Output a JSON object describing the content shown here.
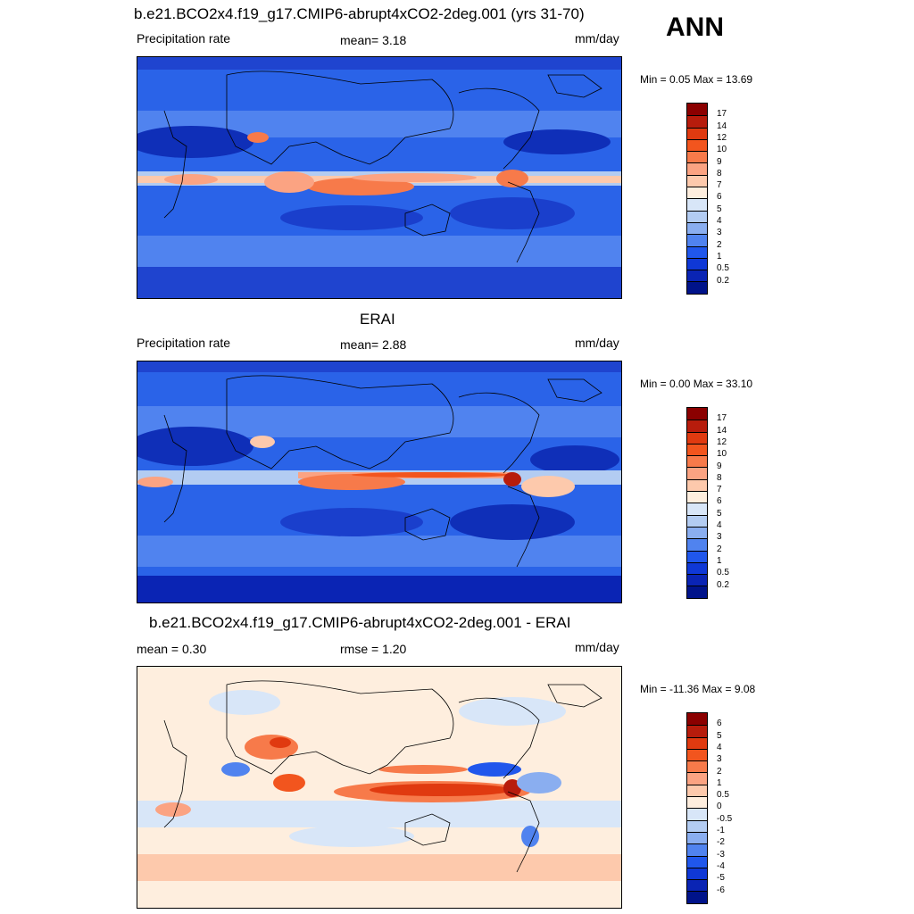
{
  "season": "ANN",
  "panels": [
    {
      "title": "b.e21.BCO2x4.f19_g17.CMIP6-abrupt4xCO2-2deg.001 (yrs 31-70)",
      "left_label": "Precipitation rate",
      "center_label": "mean=   3.18",
      "units": "mm/day",
      "minmax": "Min =   0.05 Max =  13.69"
    },
    {
      "title": "ERAI",
      "left_label": "Precipitation rate",
      "center_label": "mean=   2.88",
      "units": "mm/day",
      "minmax": "Min =   0.00 Max =  33.10"
    },
    {
      "title": "b.e21.BCO2x4.f19_g17.CMIP6-abrupt4xCO2-2deg.001 - ERAI",
      "left_label": "mean =   0.30",
      "center_label": "rmse =   1.20",
      "units": "mm/day",
      "minmax": "Min = -11.36 Max =   9.08"
    }
  ],
  "colorbars": {
    "precip": {
      "levels": [
        "17",
        "14",
        "12",
        "10",
        "9",
        "8",
        "7",
        "6",
        "5",
        "4",
        "3",
        "2",
        "1",
        "0.5",
        "0.2"
      ],
      "colors": [
        "#8b0000",
        "#b71c0c",
        "#e03a10",
        "#f2551e",
        "#f77a4a",
        "#fba382",
        "#fdc9ac",
        "#feeede",
        "#d8e6f8",
        "#b3ccf2",
        "#8aaef0",
        "#5083ef",
        "#2057ec",
        "#0f38d6",
        "#0a24b4",
        "#00138a"
      ]
    },
    "diff": {
      "levels": [
        "6",
        "5",
        "4",
        "3",
        "2",
        "1",
        "0.5",
        "0",
        "-0.5",
        "-1",
        "-2",
        "-3",
        "-4",
        "-5",
        "-6"
      ],
      "colors": [
        "#8b0000",
        "#b71c0c",
        "#e03a10",
        "#f2551e",
        "#f77a4a",
        "#fba382",
        "#fdc9ac",
        "#feeede",
        "#d8e6f8",
        "#b3ccf2",
        "#8aaef0",
        "#5083ef",
        "#2057ec",
        "#0f38d6",
        "#0a24b4",
        "#00138a"
      ]
    }
  }
}
